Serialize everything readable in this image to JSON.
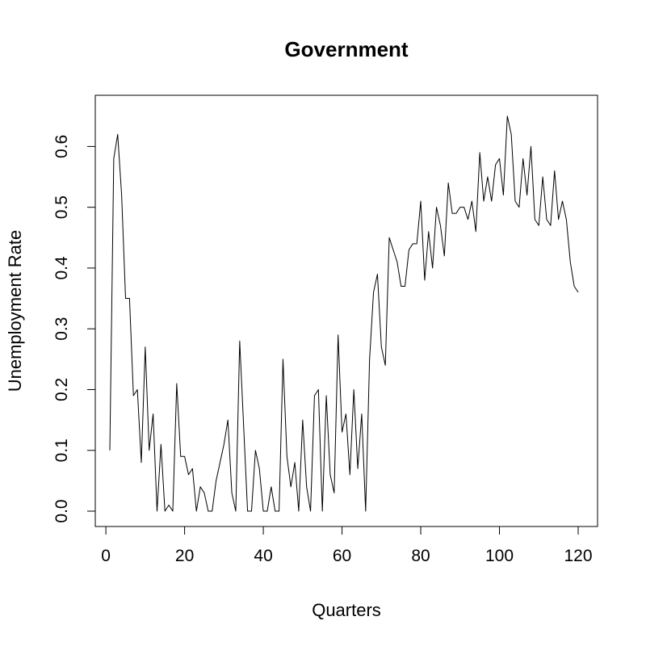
{
  "chart_data": {
    "type": "line",
    "title": "Government",
    "xlabel": "Quarters",
    "ylabel": "Unemployment Rate",
    "xlim": [
      1,
      120
    ],
    "ylim": [
      0,
      0.655
    ],
    "x_ticks": [
      0,
      20,
      40,
      60,
      80,
      100,
      120
    ],
    "x_tick_labels": [
      "0",
      "20",
      "40",
      "60",
      "80",
      "100",
      "120"
    ],
    "y_ticks": [
      0.0,
      0.1,
      0.2,
      0.3,
      0.4,
      0.5,
      0.6
    ],
    "y_tick_labels": [
      "0.0",
      "0.1",
      "0.2",
      "0.3",
      "0.4",
      "0.5",
      "0.6"
    ],
    "grid": false,
    "series": [
      {
        "color": "#000000",
        "x": [
          1,
          2,
          3,
          4,
          5,
          6,
          7,
          8,
          9,
          10,
          11,
          12,
          13,
          14,
          15,
          16,
          17,
          18,
          19,
          20,
          21,
          22,
          23,
          24,
          25,
          26,
          27,
          28,
          29,
          30,
          31,
          32,
          33,
          34,
          35,
          36,
          37,
          38,
          39,
          40,
          41,
          42,
          43,
          44,
          45,
          46,
          47,
          48,
          49,
          50,
          51,
          52,
          53,
          54,
          55,
          56,
          57,
          58,
          59,
          60,
          61,
          62,
          63,
          64,
          65,
          66,
          67,
          68,
          69,
          70,
          71,
          72,
          73,
          74,
          75,
          76,
          77,
          78,
          79,
          80,
          81,
          82,
          83,
          84,
          85,
          86,
          87,
          88,
          89,
          90,
          91,
          92,
          93,
          94,
          95,
          96,
          97,
          98,
          99,
          100,
          101,
          102,
          103,
          104,
          105,
          106,
          107,
          108,
          109,
          110,
          111,
          112,
          113,
          114,
          115,
          116,
          117,
          118,
          119,
          120
        ],
        "values": [
          0.1,
          0.58,
          0.62,
          0.52,
          0.35,
          0.35,
          0.19,
          0.2,
          0.08,
          0.27,
          0.1,
          0.16,
          0.0,
          0.11,
          0.0,
          0.01,
          0.0,
          0.21,
          0.09,
          0.09,
          0.06,
          0.07,
          0.0,
          0.04,
          0.03,
          0.0,
          0.0,
          0.05,
          0.08,
          0.11,
          0.15,
          0.03,
          0.0,
          0.28,
          0.14,
          0.0,
          0.0,
          0.1,
          0.07,
          0.0,
          0.0,
          0.04,
          0.0,
          0.0,
          0.25,
          0.09,
          0.04,
          0.08,
          0.0,
          0.15,
          0.04,
          0.0,
          0.19,
          0.2,
          0.0,
          0.19,
          0.06,
          0.03,
          0.29,
          0.13,
          0.16,
          0.06,
          0.2,
          0.07,
          0.16,
          0.0,
          0.25,
          0.36,
          0.39,
          0.27,
          0.24,
          0.45,
          0.43,
          0.41,
          0.37,
          0.37,
          0.43,
          0.44,
          0.44,
          0.51,
          0.38,
          0.46,
          0.4,
          0.5,
          0.47,
          0.42,
          0.54,
          0.49,
          0.49,
          0.5,
          0.5,
          0.48,
          0.51,
          0.46,
          0.59,
          0.51,
          0.55,
          0.51,
          0.57,
          0.58,
          0.52,
          0.65,
          0.62,
          0.51,
          0.5,
          0.58,
          0.52,
          0.6,
          0.48,
          0.47,
          0.55,
          0.48,
          0.47,
          0.56,
          0.48,
          0.51,
          0.48,
          0.41,
          0.37,
          0.36
        ]
      }
    ]
  }
}
